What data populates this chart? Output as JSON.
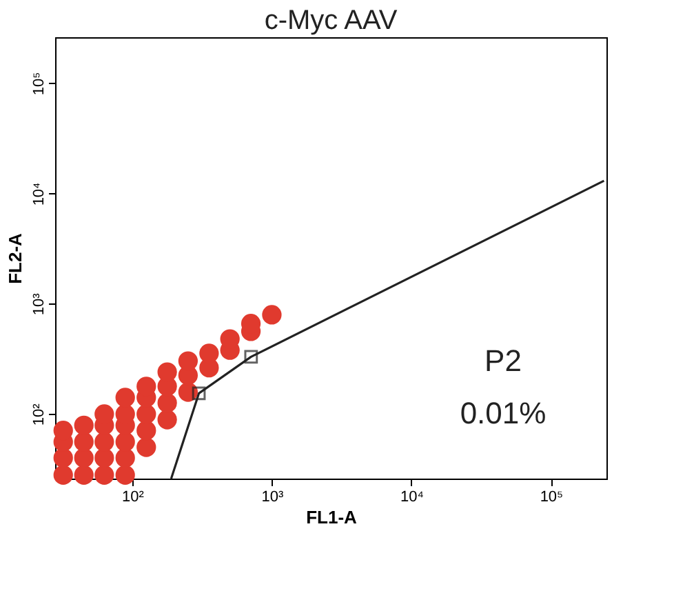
{
  "chart_data": {
    "type": "scatter",
    "title": "c-Myc AAV",
    "xlabel": "FL1-A",
    "ylabel": "FL2-A",
    "log": "xy",
    "xlim": [
      28,
      250000
    ],
    "ylim": [
      26,
      260000
    ],
    "xticks": [
      {
        "value": 100,
        "label": "10²"
      },
      {
        "value": 1000,
        "label": "10³"
      },
      {
        "value": 10000,
        "label": "10⁴"
      },
      {
        "value": 100000,
        "label": "10⁵"
      }
    ],
    "yticks": [
      {
        "value": 100,
        "label": "10²"
      },
      {
        "value": 1000,
        "label": "10³"
      },
      {
        "value": 10000,
        "label": "10⁴"
      },
      {
        "value": 100000,
        "label": "10⁵"
      }
    ],
    "grid": false,
    "annotations": [
      "P2",
      "0.01%"
    ],
    "series": [
      {
        "marker": "circle",
        "color": "#e03a2e",
        "x": [
          32,
          32,
          32,
          32,
          45,
          45,
          45,
          45,
          63,
          63,
          63,
          63,
          63,
          89,
          89,
          89,
          89,
          89,
          89,
          126,
          126,
          126,
          126,
          126,
          178,
          178,
          178,
          178,
          251,
          251,
          251,
          355,
          355,
          501,
          501,
          708,
          708,
          1000
        ],
        "values": [
          28,
          40,
          56,
          71,
          28,
          40,
          56,
          79,
          28,
          40,
          56,
          79,
          100,
          28,
          40,
          56,
          79,
          100,
          141,
          50,
          71,
          100,
          141,
          178,
          89,
          126,
          178,
          240,
          158,
          224,
          302,
          263,
          355,
          380,
          479,
          562,
          661,
          794
        ]
      },
      {
        "type": "line",
        "marker": "none",
        "line_style": "solid",
        "color": "#222222",
        "x": [
          190,
          300,
          710,
          240000
        ],
        "values": [
          26,
          154,
          330,
          13000
        ]
      },
      {
        "type": "scatter",
        "marker": "square",
        "color": "#222222",
        "x": [
          300,
          710
        ],
        "values": [
          154,
          330
        ]
      }
    ]
  }
}
